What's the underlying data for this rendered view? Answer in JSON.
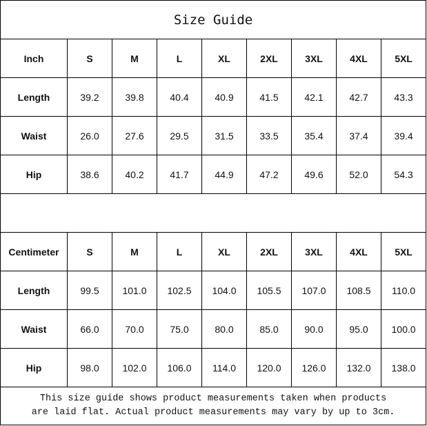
{
  "title": "Size Guide",
  "sizes": [
    "S",
    "M",
    "L",
    "XL",
    "2XL",
    "3XL",
    "4XL",
    "5XL"
  ],
  "tables": [
    {
      "unit": "Inch",
      "rows": [
        {
          "label": "Length",
          "values": [
            "39.2",
            "39.8",
            "40.4",
            "40.9",
            "41.5",
            "42.1",
            "42.7",
            "43.3"
          ]
        },
        {
          "label": "Waist",
          "values": [
            "26.0",
            "27.6",
            "29.5",
            "31.5",
            "33.5",
            "35.4",
            "37.4",
            "39.4"
          ]
        },
        {
          "label": "Hip",
          "values": [
            "38.6",
            "40.2",
            "41.7",
            "44.9",
            "47.2",
            "49.6",
            "52.0",
            "54.3"
          ]
        }
      ]
    },
    {
      "unit": "Centimeter",
      "rows": [
        {
          "label": "Length",
          "values": [
            "99.5",
            "101.0",
            "102.5",
            "104.0",
            "105.5",
            "107.0",
            "108.5",
            "110.0"
          ]
        },
        {
          "label": "Waist",
          "values": [
            "66.0",
            "70.0",
            "75.0",
            "80.0",
            "85.0",
            "90.0",
            "95.0",
            "100.0"
          ]
        },
        {
          "label": "Hip",
          "values": [
            "98.0",
            "102.0",
            "106.0",
            "114.0",
            "120.0",
            "126.0",
            "132.0",
            "138.0"
          ]
        }
      ]
    }
  ],
  "note_line1": "This size guide shows product measurements taken when products",
  "note_line2": "are laid flat. Actual product measurements may vary by up to 3cm."
}
